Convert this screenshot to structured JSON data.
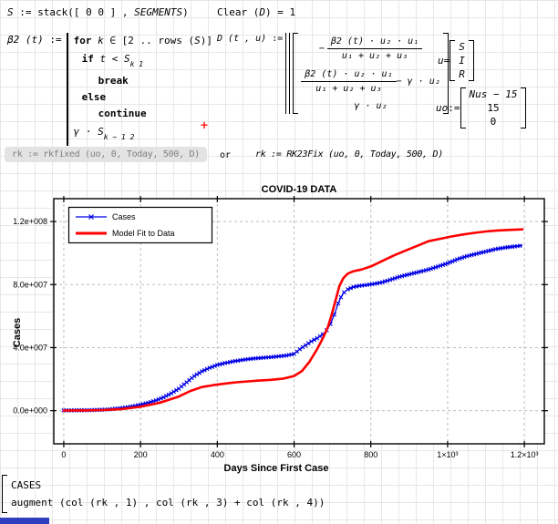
{
  "math": {
    "s_def": {
      "lhs": "S",
      "op": " := ",
      "fn": "stack",
      "args": "([ 0 0 ] , ",
      "seg": "SEGMENTS",
      "close": ")"
    },
    "clear": {
      "a": "Clear (",
      "d": "D",
      "b": ") = 1"
    },
    "beta": {
      "name": "β2",
      "args": " (t)",
      "op": " := ",
      "for_kw": "for",
      "for_var": " k ",
      "for_in": "∈",
      "for_rng": " [2 .. rows (",
      "for_s": "S",
      "for_end": ")]",
      "if_kw": "if",
      "if_expr": " t < S",
      "if_sub": "k 1",
      "break_kw": "break",
      "else_kw": "else",
      "continue_kw": "continue",
      "ret": "γ · S",
      "ret_sub": "k − 1 2"
    },
    "d_def": {
      "name": "D",
      "args": " (t , u)",
      "op": " := ",
      "r1_sign": "−",
      "r1_num": "β2 (t) · u₂ · u₁",
      "r1_den": "u₁ + u₂ + u₃",
      "r2_num": "β2 (t) · u₂ · u₁",
      "r2_den": "u₁ + u₂ + u₃",
      "r2_tail": " − γ · u₂",
      "r3": "γ · u₂"
    },
    "u_vec": {
      "lhs": "u",
      "op": " = ",
      "rows": [
        "S",
        "I",
        "R"
      ]
    },
    "uo_vec": {
      "lhs": "uo",
      "op": " := ",
      "rows": [
        "Nus − 15",
        "15",
        "0"
      ]
    },
    "rk1": "rk := rkfixed (uo, 0, Today, 500, D)",
    "or_word": "or",
    "rk2": "rk := RK23Fix (uo, 0, Today, 500, D)",
    "cursor": "+",
    "bottom": {
      "line1": "CASES",
      "line2": "augment (col (rk , 1) , col (rk , 3) + col (rk , 4))"
    }
  },
  "chart_data": {
    "type": "line",
    "title": "COVID-19 DATA",
    "xlabel": "Days Since First Case",
    "ylabel": "Cases",
    "xlim": [
      -26,
      1252
    ],
    "ylim": [
      -21000000,
      134500000
    ],
    "xticks": [
      0,
      200,
      400,
      600,
      800,
      1000,
      1200
    ],
    "xtick_labels": [
      "0",
      "200",
      "400",
      "600",
      "800",
      "1×10³",
      "1.2×10³"
    ],
    "yticks": [
      0,
      40000000,
      80000000,
      120000000
    ],
    "ytick_labels": [
      "0.0e+000",
      "4.0e+007",
      "8.0e+007",
      "1.2e+008"
    ],
    "grid": true,
    "legend_position": "top-left",
    "series": [
      {
        "name": "Cases",
        "color": "#0000e6",
        "marker": "x",
        "line_width": 1.3,
        "points": [
          [
            0,
            200000
          ],
          [
            20,
            220000
          ],
          [
            40,
            260000
          ],
          [
            60,
            320000
          ],
          [
            80,
            420000
          ],
          [
            100,
            600000
          ],
          [
            120,
            900000
          ],
          [
            140,
            1400000
          ],
          [
            160,
            2000000
          ],
          [
            180,
            2800000
          ],
          [
            200,
            3800000
          ],
          [
            220,
            5000000
          ],
          [
            240,
            6500000
          ],
          [
            260,
            8500000
          ],
          [
            280,
            11000000
          ],
          [
            300,
            14000000
          ],
          [
            320,
            18000000
          ],
          [
            340,
            22000000
          ],
          [
            360,
            25000000
          ],
          [
            380,
            27200000
          ],
          [
            400,
            29000000
          ],
          [
            420,
            30200000
          ],
          [
            440,
            31200000
          ],
          [
            460,
            32000000
          ],
          [
            480,
            32700000
          ],
          [
            500,
            33200000
          ],
          [
            520,
            33600000
          ],
          [
            540,
            34000000
          ],
          [
            560,
            34500000
          ],
          [
            580,
            35000000
          ],
          [
            600,
            36000000
          ],
          [
            615,
            39000000
          ],
          [
            630,
            41500000
          ],
          [
            645,
            44000000
          ],
          [
            660,
            46000000
          ],
          [
            675,
            48500000
          ],
          [
            685,
            51000000
          ],
          [
            695,
            55000000
          ],
          [
            705,
            61000000
          ],
          [
            715,
            68000000
          ],
          [
            722,
            72000000
          ],
          [
            730,
            75000000
          ],
          [
            740,
            77000000
          ],
          [
            755,
            78500000
          ],
          [
            770,
            79200000
          ],
          [
            790,
            79800000
          ],
          [
            810,
            80500000
          ],
          [
            830,
            81500000
          ],
          [
            850,
            83000000
          ],
          [
            875,
            85000000
          ],
          [
            900,
            86500000
          ],
          [
            925,
            88000000
          ],
          [
            950,
            89500000
          ],
          [
            975,
            91500000
          ],
          [
            1000,
            93500000
          ],
          [
            1025,
            96000000
          ],
          [
            1050,
            98000000
          ],
          [
            1075,
            99500000
          ],
          [
            1100,
            101000000
          ],
          [
            1125,
            102500000
          ],
          [
            1150,
            103500000
          ],
          [
            1175,
            104200000
          ],
          [
            1195,
            104800000
          ]
        ]
      },
      {
        "name": "Model Fit to Data",
        "color": "#ff0000",
        "marker": "none",
        "line_width": 2.6,
        "points": [
          [
            0,
            100000
          ],
          [
            50,
            150000
          ],
          [
            100,
            400000
          ],
          [
            150,
            1000000
          ],
          [
            200,
            2500000
          ],
          [
            250,
            5000000
          ],
          [
            300,
            9000000
          ],
          [
            330,
            12500000
          ],
          [
            360,
            15000000
          ],
          [
            390,
            16200000
          ],
          [
            420,
            17200000
          ],
          [
            450,
            18000000
          ],
          [
            480,
            18600000
          ],
          [
            510,
            19100000
          ],
          [
            540,
            19600000
          ],
          [
            570,
            20300000
          ],
          [
            600,
            22000000
          ],
          [
            620,
            25000000
          ],
          [
            640,
            31000000
          ],
          [
            660,
            39000000
          ],
          [
            675,
            46000000
          ],
          [
            688,
            53000000
          ],
          [
            698,
            61000000
          ],
          [
            708,
            70000000
          ],
          [
            718,
            79000000
          ],
          [
            728,
            84000000
          ],
          [
            740,
            87000000
          ],
          [
            755,
            88500000
          ],
          [
            775,
            89500000
          ],
          [
            800,
            91500000
          ],
          [
            830,
            95000000
          ],
          [
            860,
            98500000
          ],
          [
            890,
            101500000
          ],
          [
            920,
            104500000
          ],
          [
            950,
            107500000
          ],
          [
            980,
            109000000
          ],
          [
            1010,
            110500000
          ],
          [
            1040,
            111800000
          ],
          [
            1070,
            112800000
          ],
          [
            1100,
            113700000
          ],
          [
            1130,
            114300000
          ],
          [
            1160,
            114700000
          ],
          [
            1195,
            115000000
          ]
        ]
      }
    ]
  }
}
